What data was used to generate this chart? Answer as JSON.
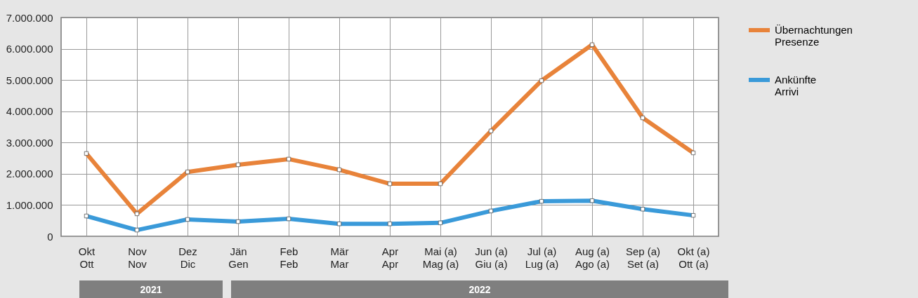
{
  "chart_data": {
    "type": "line",
    "categories": [
      "Okt\nOtt",
      "Nov\nNov",
      "Dez\nDic",
      "Jän\nGen",
      "Feb\nFeb",
      "Mär\nMar",
      "Apr\nApr",
      "Mai (a)\nMag (a)",
      "Jun (a)\nGiu (a)",
      "Jul (a)\nLug (a)",
      "Aug (a)\nAgo (a)",
      "Sep (a)\nSet (a)",
      "Okt (a)\nOtt (a)"
    ],
    "series": [
      {
        "name": "Übernachtungen\nPresenze",
        "color": "#e8833a",
        "values": [
          2650000,
          720000,
          2060000,
          2290000,
          2470000,
          2130000,
          1680000,
          1680000,
          3370000,
          4980000,
          6130000,
          3790000,
          2670000
        ]
      },
      {
        "name": "Ankünfte\nArrivi",
        "color": "#3a9ad9",
        "values": [
          650000,
          200000,
          540000,
          470000,
          560000,
          400000,
          400000,
          430000,
          810000,
          1120000,
          1140000,
          870000,
          670000
        ]
      }
    ],
    "ylim": [
      0,
      7000000
    ],
    "yticks": [
      0,
      {
        "value": 1000000,
        "label": "1.000.000"
      },
      {
        "value": 2000000,
        "label": "2.000.000"
      },
      {
        "value": 3000000,
        "label": "3.000.000"
      },
      {
        "value": 4000000,
        "label": "4.000.000"
      },
      {
        "value": 5000000,
        "label": "5.000.000"
      },
      {
        "value": 6000000,
        "label": "6.000.000"
      },
      {
        "value": 7000000,
        "label": "7.000.000"
      }
    ],
    "grid": true,
    "legend": "top right",
    "marker": "square",
    "annotations": [
      "2021",
      "2022"
    ]
  }
}
